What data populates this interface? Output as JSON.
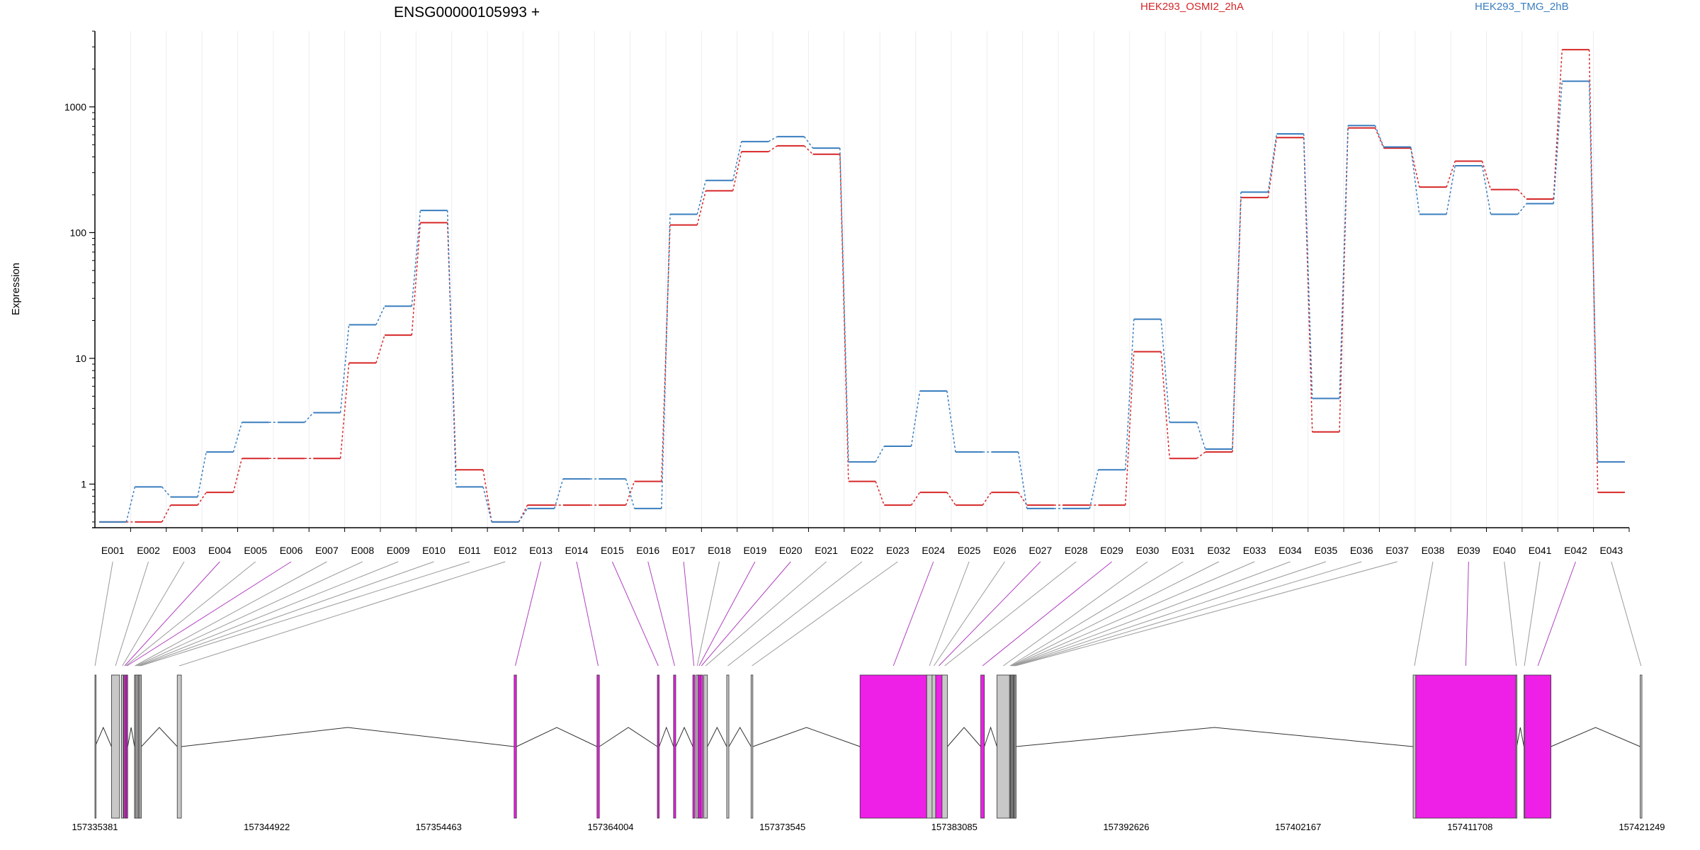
{
  "chart_data": {
    "type": "line",
    "title": "ENSG00000105993 +",
    "ylabel": "Expression",
    "yscale": "log",
    "ylim": [
      0.45,
      4000
    ],
    "yticks": [
      {
        "value": 1,
        "label": "1"
      },
      {
        "value": 10,
        "label": "10"
      },
      {
        "value": 100,
        "label": "100"
      },
      {
        "value": 1000,
        "label": "1000"
      }
    ],
    "grid": "vertical",
    "legend_position": "top-right",
    "colors": {
      "series_a": "#d62728",
      "series_b": "#3a7ebf",
      "exon_hit": "#ee1fe6",
      "exon_plain": "#c8c8c8"
    },
    "categories": [
      "E001",
      "E002",
      "E003",
      "E004",
      "E005",
      "E006",
      "E007",
      "E008",
      "E009",
      "E010",
      "E011",
      "E012",
      "E013",
      "E014",
      "E015",
      "E016",
      "E017",
      "E018",
      "E019",
      "E020",
      "E021",
      "E022",
      "E023",
      "E024",
      "E025",
      "E026",
      "E027",
      "E028",
      "E029",
      "E030",
      "E031",
      "E032",
      "E033",
      "E034",
      "E035",
      "E036",
      "E037",
      "E038",
      "E039",
      "E040",
      "E041",
      "E042",
      "E043"
    ],
    "series": [
      {
        "name": "HEK293_OSMI2_2hA",
        "color": "#d62728",
        "values": [
          0.5,
          0.5,
          0.68,
          0.86,
          1.6,
          1.6,
          1.6,
          9.2,
          15.3,
          120,
          1.3,
          0.5,
          0.68,
          0.68,
          0.68,
          1.05,
          115,
          215,
          440,
          490,
          420,
          1.05,
          0.68,
          0.86,
          0.68,
          0.86,
          0.68,
          0.68,
          0.68,
          11.3,
          1.6,
          1.8,
          190,
          570,
          2.6,
          680,
          470,
          230,
          370,
          220,
          185,
          2850,
          0.86
        ]
      },
      {
        "name": "HEK293_TMG_2hB",
        "color": "#3a7ebf",
        "values": [
          0.5,
          0.95,
          0.79,
          1.8,
          3.1,
          3.1,
          3.7,
          18.5,
          26,
          150,
          0.95,
          0.5,
          0.64,
          1.1,
          1.1,
          0.64,
          140,
          260,
          530,
          580,
          470,
          1.5,
          2.0,
          5.5,
          1.8,
          1.8,
          0.64,
          0.64,
          1.3,
          20.5,
          3.1,
          1.9,
          210,
          610,
          4.8,
          710,
          480,
          140,
          340,
          140,
          170,
          1600,
          1.5
        ]
      }
    ],
    "gene_model": {
      "start": 157335381,
      "end": 157421249,
      "ticks": [
        "157335381",
        "157344922",
        "157354463",
        "157364004",
        "157373545",
        "157383085",
        "157392626",
        "157402167",
        "157411708",
        "157421249"
      ],
      "exons": [
        {
          "id": "E001",
          "start": 157335381,
          "end": 157335390,
          "diff": false
        },
        {
          "id": "E002",
          "start": 157336300,
          "end": 157336750,
          "diff": false
        },
        {
          "id": "E003",
          "start": 157336850,
          "end": 157336960,
          "diff": false
        },
        {
          "id": "E004",
          "start": 157336980,
          "end": 157337080,
          "diff": true
        },
        {
          "id": "E005",
          "start": 157337080,
          "end": 157337120,
          "diff": false
        },
        {
          "id": "E006",
          "start": 157337120,
          "end": 157337200,
          "diff": true
        },
        {
          "id": "E007",
          "start": 157337580,
          "end": 157337630,
          "diff": false
        },
        {
          "id": "E008",
          "start": 157337630,
          "end": 157337720,
          "diff": false
        },
        {
          "id": "E009",
          "start": 157337720,
          "end": 157337800,
          "diff": false
        },
        {
          "id": "E010",
          "start": 157337800,
          "end": 157337870,
          "diff": false
        },
        {
          "id": "E011",
          "start": 157337870,
          "end": 157337960,
          "diff": false
        },
        {
          "id": "E012",
          "start": 157339950,
          "end": 157340180,
          "diff": false
        },
        {
          "id": "E013",
          "start": 157358650,
          "end": 157358780,
          "diff": true
        },
        {
          "id": "E014",
          "start": 157363250,
          "end": 157363380,
          "diff": true
        },
        {
          "id": "E015",
          "start": 157366600,
          "end": 157366700,
          "diff": true
        },
        {
          "id": "E016",
          "start": 157367500,
          "end": 157367620,
          "diff": true
        },
        {
          "id": "E017",
          "start": 157368570,
          "end": 157368690,
          "diff": true
        },
        {
          "id": "E018",
          "start": 157368760,
          "end": 157368860,
          "diff": false
        },
        {
          "id": "E019",
          "start": 157368860,
          "end": 157368970,
          "diff": true
        },
        {
          "id": "E020",
          "start": 157368970,
          "end": 157369120,
          "diff": true
        },
        {
          "id": "E021",
          "start": 157369180,
          "end": 157369380,
          "diff": false
        },
        {
          "id": "E022",
          "start": 157370450,
          "end": 157370570,
          "diff": false
        },
        {
          "id": "E023",
          "start": 157371800,
          "end": 157371900,
          "diff": false
        },
        {
          "id": "E024",
          "start": 157377850,
          "end": 157381550,
          "diff": true
        },
        {
          "id": "E025",
          "start": 157381550,
          "end": 157381850,
          "diff": false
        },
        {
          "id": "E026",
          "start": 157381850,
          "end": 157382050,
          "diff": false
        },
        {
          "id": "E027",
          "start": 157382050,
          "end": 157382400,
          "diff": true
        },
        {
          "id": "E028",
          "start": 157382400,
          "end": 157382700,
          "diff": false
        },
        {
          "id": "E029",
          "start": 157384550,
          "end": 157384750,
          "diff": true
        },
        {
          "id": "E030",
          "start": 157385450,
          "end": 157386150,
          "diff": false
        },
        {
          "id": "E031",
          "start": 157386150,
          "end": 157386200,
          "diff": false
        },
        {
          "id": "E032",
          "start": 157386200,
          "end": 157386250,
          "diff": false
        },
        {
          "id": "E033",
          "start": 157386250,
          "end": 157386300,
          "diff": false
        },
        {
          "id": "E034",
          "start": 157386300,
          "end": 157386350,
          "diff": false
        },
        {
          "id": "E035",
          "start": 157386350,
          "end": 157386400,
          "diff": false
        },
        {
          "id": "E036",
          "start": 157386400,
          "end": 157386450,
          "diff": false
        },
        {
          "id": "E037",
          "start": 157386450,
          "end": 157386500,
          "diff": false
        },
        {
          "id": "E038",
          "start": 157408550,
          "end": 157408700,
          "diff": false
        },
        {
          "id": "E039",
          "start": 157408700,
          "end": 157414250,
          "diff": true
        },
        {
          "id": "E040",
          "start": 157414250,
          "end": 157414300,
          "diff": false
        },
        {
          "id": "E041",
          "start": 157414700,
          "end": 157414750,
          "diff": false
        },
        {
          "id": "E042",
          "start": 157414750,
          "end": 157416200,
          "diff": true
        },
        {
          "id": "E043",
          "start": 157421150,
          "end": 157421249,
          "diff": false
        }
      ]
    }
  }
}
